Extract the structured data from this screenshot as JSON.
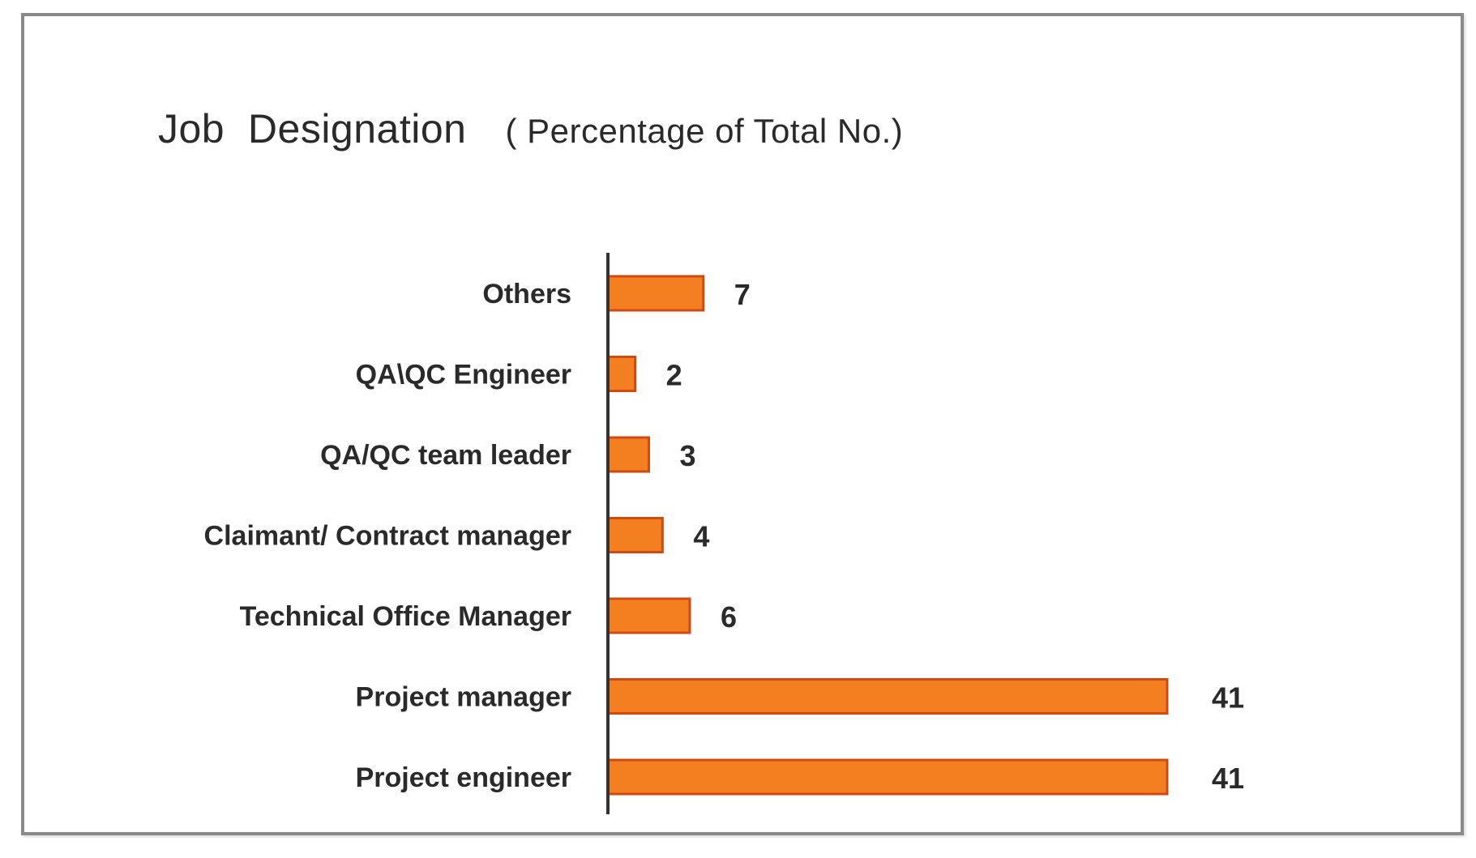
{
  "chart_data": {
    "type": "bar",
    "orientation": "horizontal",
    "title": "Job  Designation",
    "subtitle": "( Percentage of Total No.)",
    "categories": [
      "Others",
      "QA\\QC Engineer",
      "QA/QC team leader",
      "Claimant/ Contract manager",
      "Technical Office Manager",
      "Project manager",
      "Project engineer"
    ],
    "values": [
      7,
      2,
      3,
      4,
      6,
      41,
      41
    ],
    "xlabel": "",
    "ylabel": "",
    "xlim": [
      0,
      45
    ],
    "grid": false,
    "legend": "none",
    "data_labels": true,
    "colors": {
      "bar_fill": "#f47f20",
      "bar_stroke": "#d24a10",
      "axis": "#333333",
      "text": "#2a2a2a"
    }
  }
}
